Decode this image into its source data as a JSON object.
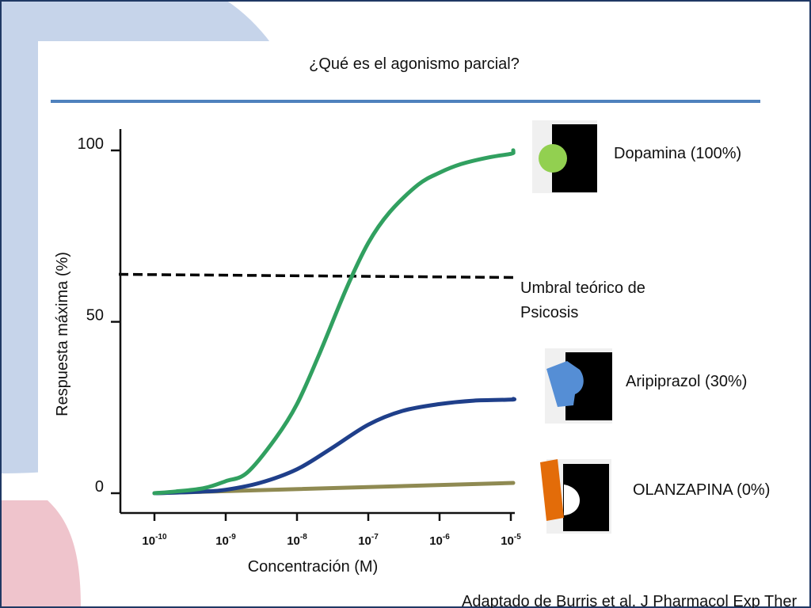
{
  "slide": {
    "title": "¿Qué es el agonismo parcial?",
    "citation": "Adaptado de Burris et al. J Pharmacol Exp Ther"
  },
  "colors": {
    "title_rule": "#4f81bd",
    "slide_border": "#1f3864",
    "bg_blue": "#c6d4ea",
    "bg_pink": "#efc4cc",
    "receptor": "#000000"
  },
  "legend": {
    "dopamina": {
      "label": "Dopamina (100%)",
      "ligand_color": "#92d050",
      "ligand_shape": "circle-icon"
    },
    "aripiprazol": {
      "label": "Aripiprazol (30%)",
      "ligand_color": "#558ed5",
      "ligand_shape": "rounded-block-icon"
    },
    "olanzapina": {
      "label": "OLANZAPINA (0%)",
      "ligand_color": "#e36c09",
      "ligand_shape": "bar-icon"
    }
  },
  "chart_data": {
    "type": "line",
    "xlabel": "Concentración (M)",
    "ylabel": "Respuesta máxima (%)",
    "x_scale": "log",
    "xlim": [
      1e-10,
      0.0004
    ],
    "ylim": [
      0,
      100
    ],
    "x_ticks": [
      {
        "base": "10",
        "exp": "-10",
        "value": 1e-10
      },
      {
        "base": "10",
        "exp": "-9",
        "value": 1e-09
      },
      {
        "base": "10",
        "exp": "-8",
        "value": 1e-08
      },
      {
        "base": "10",
        "exp": "-7",
        "value": 1e-07
      },
      {
        "base": "10",
        "exp": "-6",
        "value": 1e-06
      },
      {
        "base": "10",
        "exp": "-5",
        "value": 1e-05
      }
    ],
    "y_ticks": [
      0,
      50,
      100
    ],
    "threshold": {
      "value": 62,
      "label": "Umbral teórico de Psicosis",
      "style": "dashed",
      "color": "#000000"
    },
    "series": [
      {
        "name": "Dopamina (100%)",
        "color": "#31a060",
        "x": [
          1e-10,
          2e-10,
          5e-10,
          1e-09,
          2e-09,
          5e-09,
          1e-08,
          2e-08,
          5e-08,
          1e-07,
          2e-07,
          5e-07,
          1e-06,
          2e-06,
          5e-06,
          1e-05,
          4e-05,
          0.0001,
          0.0004
        ],
        "y": [
          0,
          0.5,
          1.5,
          3.5,
          6,
          16,
          26,
          40,
          60,
          73,
          82,
          90,
          93.5,
          96,
          98,
          99,
          99.5,
          100,
          100
        ]
      },
      {
        "name": "Aripiprazol (30%)",
        "color": "#1f3f8a",
        "x": [
          1e-10,
          5e-10,
          1e-09,
          3e-09,
          1e-08,
          3e-08,
          1e-07,
          3e-07,
          1e-06,
          3e-06,
          1e-05,
          4e-05,
          0.0004
        ],
        "y": [
          0,
          0.5,
          1,
          3,
          7,
          13,
          20,
          24,
          26,
          27,
          27.3,
          27.5,
          27.5
        ]
      },
      {
        "name": "OLANZAPINA (0%)",
        "color": "#8f8a52",
        "x": [
          1e-10,
          0.0004
        ],
        "y": [
          0,
          3
        ]
      }
    ]
  }
}
